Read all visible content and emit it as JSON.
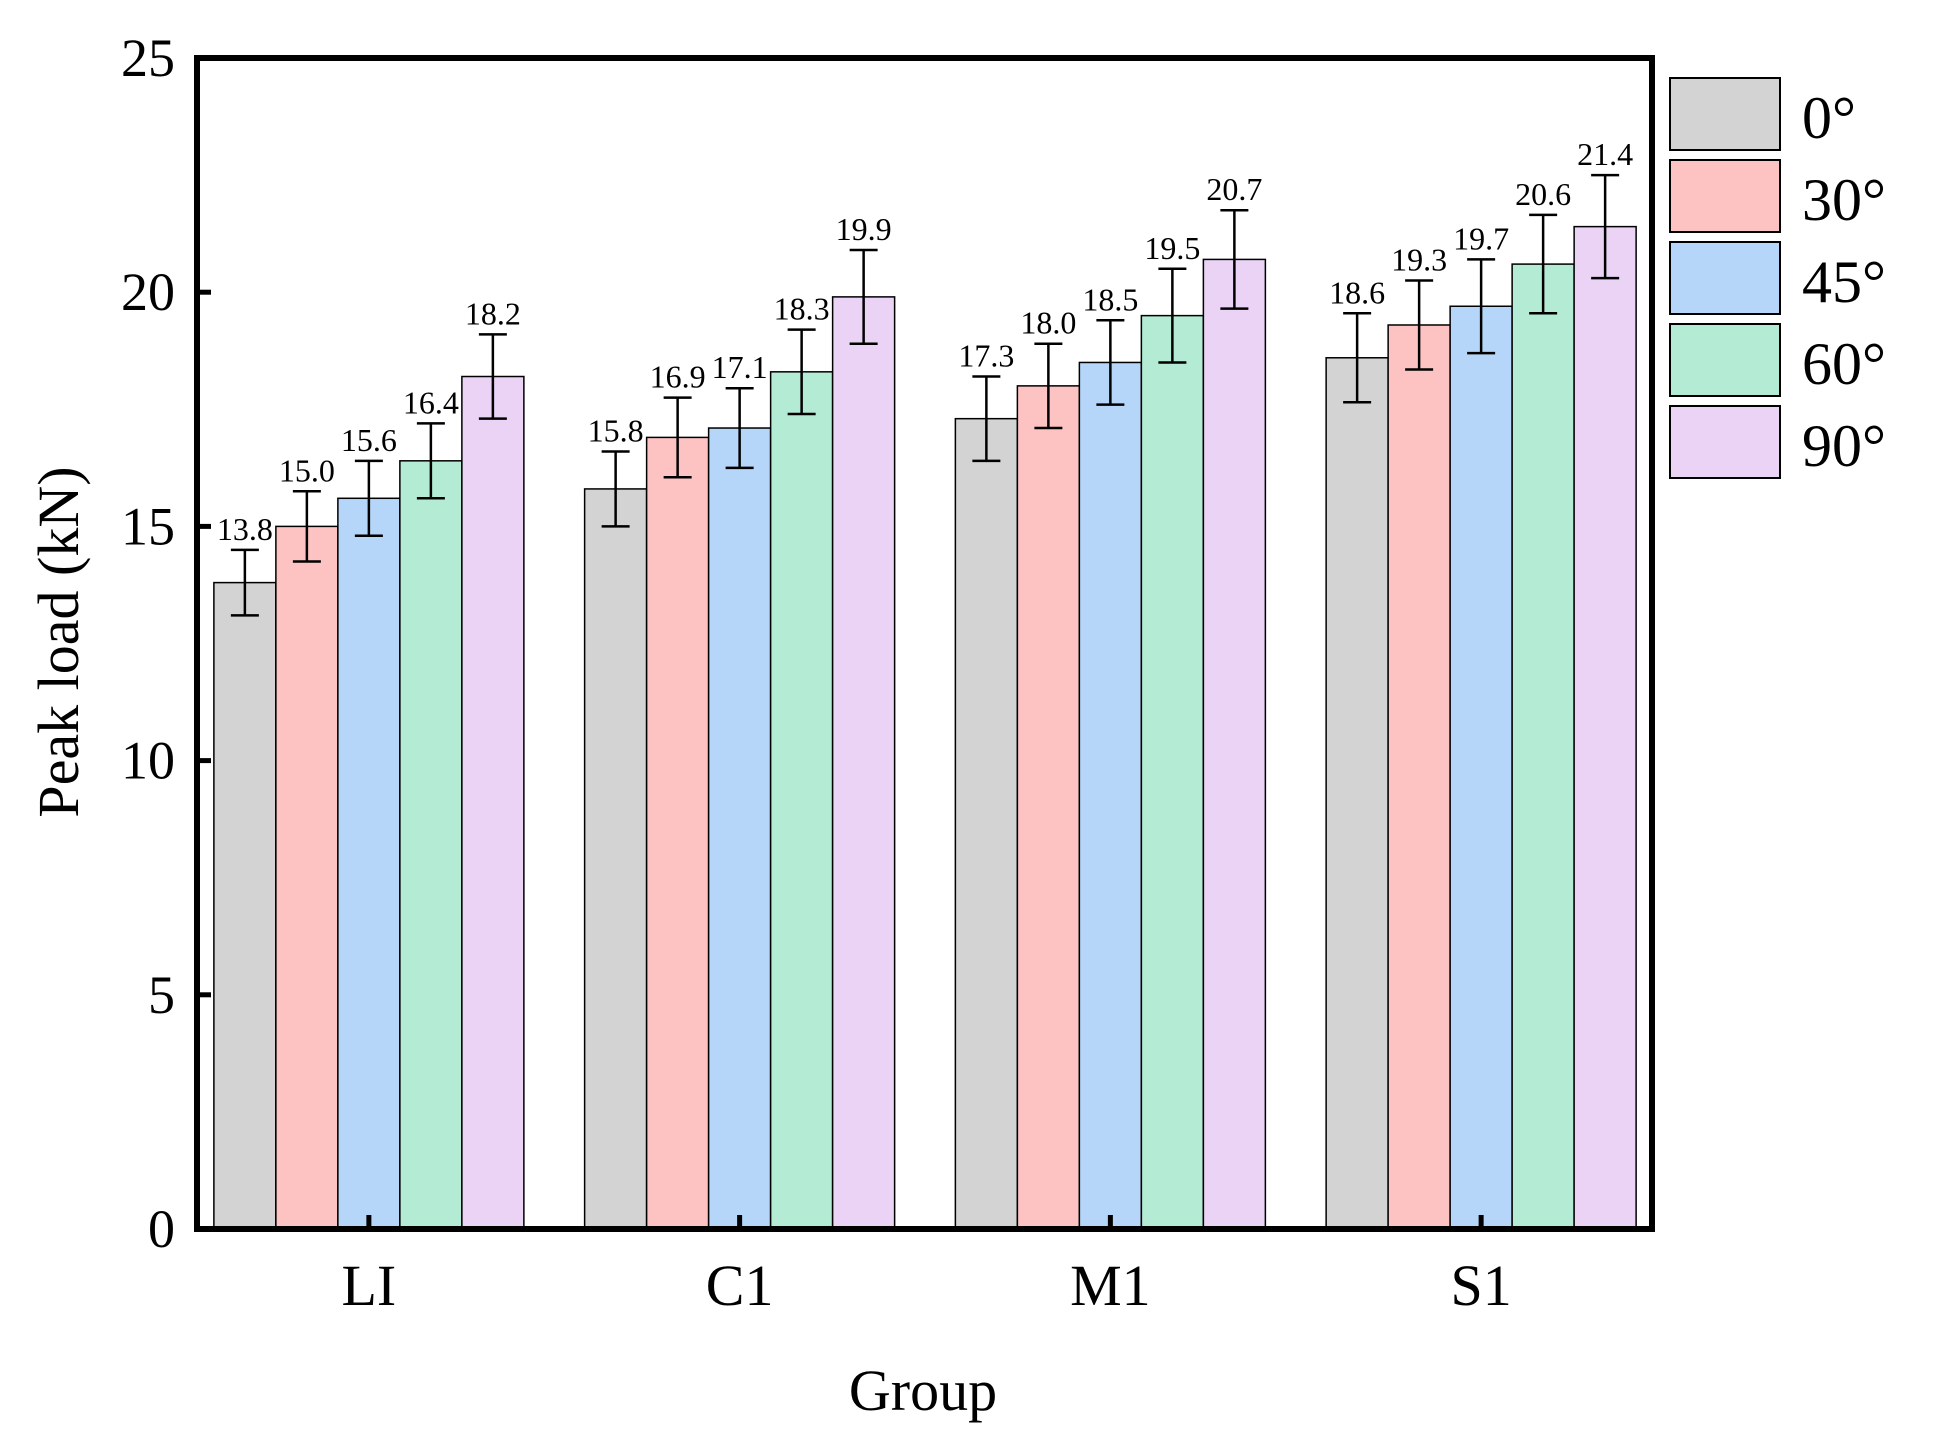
{
  "chart_data": {
    "type": "bar",
    "title": "",
    "xlabel": "Group",
    "ylabel": "Peak load (kN)",
    "categories": [
      "LI",
      "C1",
      "M1",
      "S1"
    ],
    "ylim": [
      0,
      25
    ],
    "yticks": [
      0,
      5,
      10,
      15,
      20,
      25
    ],
    "legend_position": "right-top (outside)",
    "series": [
      {
        "name": "0°",
        "color": "#d3d3d3",
        "values": [
          13.8,
          15.8,
          17.3,
          18.6
        ],
        "errors": [
          0.7,
          0.8,
          0.9,
          0.95
        ],
        "labels": [
          "13.8",
          "15.8",
          "17.3",
          "18.6"
        ]
      },
      {
        "name": "30°",
        "color": "#fdc3c3",
        "values": [
          15.0,
          16.9,
          18.0,
          19.3
        ],
        "errors": [
          0.75,
          0.85,
          0.9,
          0.95
        ],
        "labels": [
          "15.0",
          "16.9",
          "18.0",
          "19.3"
        ]
      },
      {
        "name": "45°",
        "color": "#b5d6f8",
        "values": [
          15.6,
          17.1,
          18.5,
          19.7
        ],
        "errors": [
          0.8,
          0.85,
          0.9,
          1.0
        ],
        "labels": [
          "15.6",
          "17.1",
          "18.5",
          "19.7"
        ]
      },
      {
        "name": "60°",
        "color": "#b3ebd5",
        "values": [
          16.4,
          18.3,
          19.5,
          20.6
        ],
        "errors": [
          0.8,
          0.9,
          1.0,
          1.05
        ],
        "labels": [
          "16.4",
          "18.3",
          "19.5",
          "20.6"
        ]
      },
      {
        "name": "90°",
        "color": "#ead3f5",
        "values": [
          18.2,
          19.9,
          20.7,
          21.4
        ],
        "errors": [
          0.9,
          1.0,
          1.05,
          1.1
        ],
        "labels": [
          "18.2",
          "19.9",
          "20.7",
          "21.4"
        ]
      }
    ]
  }
}
